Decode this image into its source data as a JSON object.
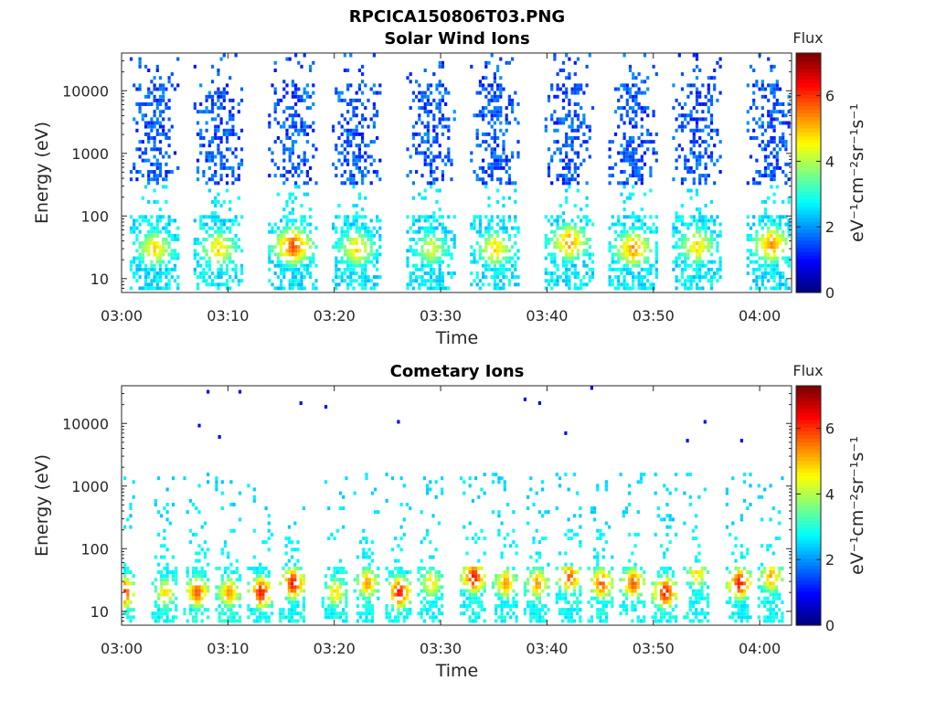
{
  "figure_title": "RPCICA150806T03.PNG",
  "chart_data": [
    {
      "type": "heatmap",
      "title": "Solar Wind Ions",
      "xlabel": "Time",
      "ylabel": "Energy (eV)",
      "yscale": "log",
      "ylim": [
        6,
        40000
      ],
      "xlim": [
        "03:00",
        "04:03"
      ],
      "xticks": [
        "03:00",
        "03:10",
        "03:20",
        "03:30",
        "03:40",
        "03:50",
        "04:00"
      ],
      "yticks": [
        "10",
        "100",
        "1000",
        "10000"
      ],
      "colorbar": {
        "title": "Flux",
        "label": "eV⁻¹cm⁻²sr⁻¹s⁻¹",
        "range": [
          0,
          7.3
        ],
        "ticks": [
          "0",
          "2",
          "4",
          "6"
        ],
        "colormap": "jet"
      },
      "bursts": [
        {
          "t": "03:03",
          "peak_energy": 30,
          "peak_flux": 5.0
        },
        {
          "t": "03:09",
          "peak_energy": 30,
          "peak_flux": 5.0
        },
        {
          "t": "03:16",
          "peak_energy": 33,
          "peak_flux": 6.0
        },
        {
          "t": "03:22",
          "peak_energy": 30,
          "peak_flux": 5.0
        },
        {
          "t": "03:29",
          "peak_energy": 30,
          "peak_flux": 4.5
        },
        {
          "t": "03:35",
          "peak_energy": 30,
          "peak_flux": 5.0
        },
        {
          "t": "03:42",
          "peak_energy": 38,
          "peak_flux": 5.5
        },
        {
          "t": "03:48",
          "peak_energy": 30,
          "peak_flux": 5.5
        },
        {
          "t": "03:54",
          "peak_energy": 33,
          "peak_flux": 5.0
        },
        {
          "t": "04:01",
          "peak_energy": 35,
          "peak_flux": 5.5
        }
      ]
    },
    {
      "type": "heatmap",
      "title": "Cometary Ions",
      "xlabel": "Time",
      "ylabel": "Energy (eV)",
      "yscale": "log",
      "ylim": [
        6,
        40000
      ],
      "xlim": [
        "03:00",
        "04:03"
      ],
      "xticks": [
        "03:00",
        "03:10",
        "03:20",
        "03:30",
        "03:40",
        "03:50",
        "04:00"
      ],
      "yticks": [
        "10",
        "100",
        "1000",
        "10000"
      ],
      "colorbar": {
        "title": "Flux",
        "label": "eV⁻¹cm⁻²sr⁻¹s⁻¹",
        "range": [
          0,
          7.3
        ],
        "ticks": [
          "0",
          "2",
          "4",
          "6"
        ],
        "colormap": "jet"
      },
      "bursts": [
        {
          "t": "03:00",
          "peak_energy": 20,
          "peak_flux": 6.5
        },
        {
          "t": "03:04",
          "peak_energy": 20,
          "peak_flux": 5.0
        },
        {
          "t": "03:07",
          "peak_energy": 20,
          "peak_flux": 6.0
        },
        {
          "t": "03:10",
          "peak_energy": 20,
          "peak_flux": 5.5
        },
        {
          "t": "03:13",
          "peak_energy": 20,
          "peak_flux": 6.5
        },
        {
          "t": "03:16",
          "peak_energy": 28,
          "peak_flux": 6.5
        },
        {
          "t": "03:20",
          "peak_energy": 20,
          "peak_flux": 5.0
        },
        {
          "t": "03:23",
          "peak_energy": 28,
          "peak_flux": 5.5
        },
        {
          "t": "03:26",
          "peak_energy": 20,
          "peak_flux": 6.5
        },
        {
          "t": "03:29",
          "peak_energy": 28,
          "peak_flux": 5.0
        },
        {
          "t": "03:33",
          "peak_energy": 35,
          "peak_flux": 6.5
        },
        {
          "t": "03:36",
          "peak_energy": 28,
          "peak_flux": 5.5
        },
        {
          "t": "03:39",
          "peak_energy": 28,
          "peak_flux": 5.5
        },
        {
          "t": "03:42",
          "peak_energy": 35,
          "peak_flux": 6.0
        },
        {
          "t": "03:45",
          "peak_energy": 28,
          "peak_flux": 6.0
        },
        {
          "t": "03:48",
          "peak_energy": 28,
          "peak_flux": 6.0
        },
        {
          "t": "03:51",
          "peak_energy": 20,
          "peak_flux": 6.5
        },
        {
          "t": "03:54",
          "peak_energy": 40,
          "peak_flux": 5.0
        },
        {
          "t": "03:58",
          "peak_energy": 28,
          "peak_flux": 6.5
        },
        {
          "t": "04:01",
          "peak_energy": 35,
          "peak_flux": 5.5
        }
      ]
    }
  ]
}
